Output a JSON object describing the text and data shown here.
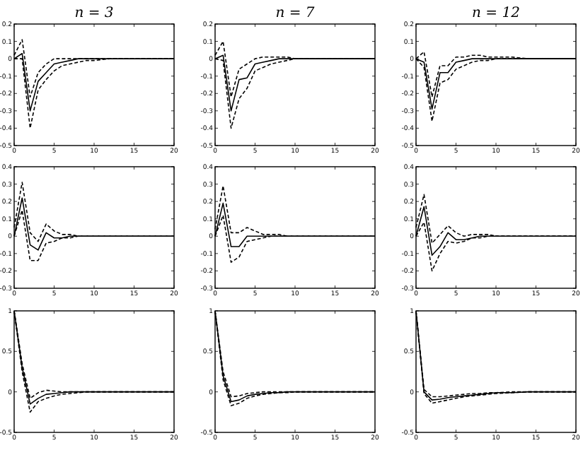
{
  "chart_data": [
    {
      "type": "line",
      "title": "n = 3",
      "x": [
        0,
        1,
        2,
        3,
        4,
        5,
        6,
        7,
        8,
        9,
        10,
        12,
        14,
        16,
        18,
        20
      ],
      "xlim": [
        0,
        20
      ],
      "xticks": [
        0,
        5,
        10,
        15,
        20
      ],
      "ylim": [
        -0.5,
        0.2
      ],
      "yticks": [
        -0.5,
        -0.4,
        -0.3,
        -0.2,
        -0.1,
        0,
        0.1,
        0.2
      ],
      "series": [
        {
          "color": "#000000",
          "line_style": "solid",
          "values": [
            0,
            0.03,
            -0.3,
            -0.13,
            -0.08,
            -0.03,
            -0.02,
            -0.01,
            0,
            0,
            0,
            0,
            0,
            0,
            0,
            0
          ]
        },
        {
          "color": "#000000",
          "line_style": "dashed",
          "values": [
            0,
            0,
            -0.4,
            -0.18,
            -0.12,
            -0.07,
            -0.04,
            -0.03,
            -0.02,
            -0.01,
            -0.01,
            0,
            0,
            0,
            0,
            0
          ]
        },
        {
          "color": "#000000",
          "line_style": "dashed",
          "values": [
            0.02,
            0.11,
            -0.22,
            -0.08,
            -0.03,
            0,
            0,
            0,
            0,
            0,
            0,
            0,
            0,
            0,
            0,
            0
          ]
        }
      ]
    },
    {
      "type": "line",
      "title": "n = 7",
      "x": [
        0,
        1,
        2,
        3,
        4,
        5,
        6,
        7,
        8,
        9,
        10,
        12,
        14,
        16,
        18,
        20
      ],
      "xlim": [
        0,
        20
      ],
      "xticks": [
        0,
        5,
        10,
        15,
        20
      ],
      "ylim": [
        -0.5,
        0.2
      ],
      "yticks": [
        -0.5,
        -0.4,
        -0.3,
        -0.2,
        -0.1,
        0,
        0.1,
        0.2
      ],
      "series": [
        {
          "color": "#000000",
          "line_style": "solid",
          "values": [
            0,
            0.02,
            -0.3,
            -0.12,
            -0.11,
            -0.03,
            -0.02,
            -0.01,
            0,
            0,
            0,
            0,
            0,
            0,
            0,
            0
          ]
        },
        {
          "color": "#000000",
          "line_style": "dashed",
          "values": [
            0,
            -0.01,
            -0.4,
            -0.23,
            -0.17,
            -0.07,
            -0.05,
            -0.03,
            -0.02,
            -0.01,
            0,
            0,
            0,
            0,
            0,
            0
          ]
        },
        {
          "color": "#000000",
          "line_style": "dashed",
          "values": [
            0.02,
            0.1,
            -0.22,
            -0.06,
            -0.03,
            0,
            0.01,
            0.01,
            0.01,
            0.01,
            0,
            0,
            0,
            0,
            0,
            0
          ]
        }
      ]
    },
    {
      "type": "line",
      "title": "n = 12",
      "x": [
        0,
        1,
        2,
        3,
        4,
        5,
        6,
        7,
        8,
        9,
        10,
        12,
        14,
        16,
        18,
        20
      ],
      "xlim": [
        0,
        20
      ],
      "xticks": [
        0,
        5,
        10,
        15,
        20
      ],
      "ylim": [
        -0.5,
        0.2
      ],
      "yticks": [
        -0.5,
        -0.4,
        -0.3,
        -0.2,
        -0.1,
        0,
        0.1,
        0.2
      ],
      "series": [
        {
          "color": "#000000",
          "line_style": "solid",
          "values": [
            0,
            -0.02,
            -0.29,
            -0.08,
            -0.08,
            -0.02,
            -0.01,
            0,
            0,
            0,
            0,
            0,
            0,
            0,
            0,
            0
          ]
        },
        {
          "color": "#000000",
          "line_style": "dashed",
          "values": [
            0,
            -0.05,
            -0.36,
            -0.14,
            -0.12,
            -0.06,
            -0.04,
            -0.02,
            -0.01,
            -0.01,
            0,
            0,
            0,
            0,
            0,
            0
          ]
        },
        {
          "color": "#000000",
          "line_style": "dashed",
          "values": [
            0,
            0.04,
            -0.22,
            -0.04,
            -0.04,
            0.01,
            0.01,
            0.02,
            0.02,
            0.01,
            0.01,
            0.01,
            0,
            0,
            0,
            0
          ]
        }
      ]
    },
    {
      "type": "line",
      "x": [
        0,
        1,
        2,
        3,
        4,
        5,
        6,
        7,
        8,
        9,
        10,
        12,
        14,
        16,
        18,
        20
      ],
      "xlim": [
        0,
        20
      ],
      "xticks": [
        0,
        5,
        10,
        15,
        20
      ],
      "ylim": [
        -0.3,
        0.4
      ],
      "yticks": [
        -0.3,
        -0.2,
        -0.1,
        0,
        0.1,
        0.2,
        0.3,
        0.4
      ],
      "series": [
        {
          "color": "#000000",
          "line_style": "solid",
          "values": [
            0,
            0.22,
            -0.05,
            -0.08,
            0.02,
            -0.01,
            -0.01,
            0,
            0,
            0,
            0,
            0,
            0,
            0,
            0,
            0
          ]
        },
        {
          "color": "#000000",
          "line_style": "dashed",
          "values": [
            0,
            0.15,
            -0.14,
            -0.14,
            -0.04,
            -0.03,
            -0.01,
            -0.01,
            0,
            0,
            0,
            0,
            0,
            0,
            0,
            0
          ]
        },
        {
          "color": "#000000",
          "line_style": "dashed",
          "values": [
            0.05,
            0.31,
            0.02,
            -0.03,
            0.07,
            0.03,
            0.01,
            0.01,
            0,
            0,
            0,
            0,
            0,
            0,
            0,
            0
          ]
        }
      ]
    },
    {
      "type": "line",
      "x": [
        0,
        1,
        2,
        3,
        4,
        5,
        6,
        7,
        8,
        9,
        10,
        12,
        14,
        16,
        18,
        20
      ],
      "xlim": [
        0,
        20
      ],
      "xticks": [
        0,
        5,
        10,
        15,
        20
      ],
      "ylim": [
        -0.3,
        0.4
      ],
      "yticks": [
        -0.3,
        -0.2,
        -0.1,
        0,
        0.1,
        0.2,
        0.3,
        0.4
      ],
      "series": [
        {
          "color": "#000000",
          "line_style": "solid",
          "values": [
            0,
            0.19,
            -0.06,
            -0.06,
            0,
            0,
            0,
            0,
            0,
            0,
            0,
            0,
            0,
            0,
            0,
            0
          ]
        },
        {
          "color": "#000000",
          "line_style": "dashed",
          "values": [
            0,
            0.12,
            -0.15,
            -0.12,
            -0.03,
            -0.02,
            -0.01,
            0,
            0,
            0,
            0,
            0,
            0,
            0,
            0,
            0
          ]
        },
        {
          "color": "#000000",
          "line_style": "dashed",
          "values": [
            0.04,
            0.29,
            0.02,
            0.02,
            0.05,
            0.03,
            0.01,
            0.01,
            0.01,
            0,
            0,
            0,
            0,
            0,
            0,
            0
          ]
        }
      ]
    },
    {
      "type": "line",
      "x": [
        0,
        1,
        2,
        3,
        4,
        5,
        6,
        7,
        8,
        9,
        10,
        12,
        14,
        16,
        18,
        20
      ],
      "xlim": [
        0,
        20
      ],
      "xticks": [
        0,
        5,
        10,
        15,
        20
      ],
      "ylim": [
        -0.3,
        0.4
      ],
      "yticks": [
        -0.3,
        -0.2,
        -0.1,
        0,
        0.1,
        0.2,
        0.3,
        0.4
      ],
      "series": [
        {
          "color": "#000000",
          "line_style": "solid",
          "values": [
            0,
            0.17,
            -0.11,
            -0.06,
            0.02,
            -0.02,
            -0.02,
            -0.01,
            0,
            0,
            0,
            0,
            0,
            0,
            0,
            0
          ]
        },
        {
          "color": "#000000",
          "line_style": "dashed",
          "values": [
            0,
            0.08,
            -0.2,
            -0.1,
            -0.03,
            -0.04,
            -0.03,
            -0.01,
            -0.01,
            0,
            0,
            0,
            0,
            0,
            0,
            0
          ]
        },
        {
          "color": "#000000",
          "line_style": "dashed",
          "values": [
            0.05,
            0.24,
            -0.04,
            0.01,
            0.06,
            0.02,
            0,
            0.01,
            0.01,
            0.01,
            0,
            0,
            0,
            0,
            0,
            0
          ]
        }
      ]
    },
    {
      "type": "line",
      "x": [
        0,
        1,
        2,
        3,
        4,
        5,
        6,
        7,
        8,
        9,
        10,
        12,
        14,
        16,
        18,
        20
      ],
      "xlim": [
        0,
        20
      ],
      "xticks": [
        0,
        5,
        10,
        15,
        20
      ],
      "ylim": [
        -0.5,
        1
      ],
      "yticks": [
        -0.5,
        0,
        0.5,
        1
      ],
      "series": [
        {
          "color": "#000000",
          "line_style": "solid",
          "values": [
            1,
            0.3,
            -0.15,
            -0.08,
            -0.03,
            -0.02,
            -0.01,
            0,
            0,
            0,
            0,
            0,
            0,
            0,
            0,
            0
          ]
        },
        {
          "color": "#000000",
          "line_style": "dashed",
          "values": [
            1,
            0.25,
            -0.25,
            -0.12,
            -0.08,
            -0.05,
            -0.03,
            -0.02,
            -0.01,
            0,
            0,
            0,
            0,
            0,
            0,
            0
          ]
        },
        {
          "color": "#000000",
          "line_style": "dashed",
          "values": [
            1,
            0.35,
            -0.08,
            -0.01,
            0.02,
            0.01,
            0,
            0,
            0,
            0,
            0,
            0,
            0,
            0,
            0,
            0
          ]
        }
      ]
    },
    {
      "type": "line",
      "x": [
        0,
        1,
        2,
        3,
        4,
        5,
        6,
        7,
        8,
        9,
        10,
        12,
        14,
        16,
        18,
        20
      ],
      "xlim": [
        0,
        20
      ],
      "xticks": [
        0,
        5,
        10,
        15,
        20
      ],
      "ylim": [
        -0.5,
        1
      ],
      "yticks": [
        -0.5,
        0,
        0.5,
        1
      ],
      "series": [
        {
          "color": "#000000",
          "line_style": "solid",
          "values": [
            1,
            0.2,
            -0.12,
            -0.1,
            -0.05,
            -0.03,
            -0.02,
            -0.01,
            -0.01,
            0,
            0,
            0,
            0,
            0,
            0,
            0
          ]
        },
        {
          "color": "#000000",
          "line_style": "dashed",
          "values": [
            1,
            0.15,
            -0.17,
            -0.14,
            -0.08,
            -0.05,
            -0.03,
            -0.02,
            -0.01,
            -0.01,
            0,
            0,
            0,
            0,
            0,
            0
          ]
        },
        {
          "color": "#000000",
          "line_style": "dashed",
          "values": [
            1,
            0.25,
            -0.06,
            -0.05,
            -0.02,
            -0.01,
            0,
            0,
            0,
            0,
            0,
            0,
            0,
            0,
            0,
            0
          ]
        }
      ]
    },
    {
      "type": "line",
      "x": [
        0,
        1,
        2,
        3,
        4,
        5,
        6,
        7,
        8,
        9,
        10,
        12,
        14,
        16,
        18,
        20
      ],
      "xlim": [
        0,
        20
      ],
      "xticks": [
        0,
        5,
        10,
        15,
        20
      ],
      "ylim": [
        -0.5,
        1
      ],
      "yticks": [
        -0.5,
        0,
        0.5,
        1
      ],
      "series": [
        {
          "color": "#000000",
          "line_style": "solid",
          "values": [
            1,
            0,
            -0.1,
            -0.09,
            -0.07,
            -0.06,
            -0.05,
            -0.04,
            -0.03,
            -0.02,
            -0.01,
            -0.01,
            0,
            0,
            0,
            0
          ]
        },
        {
          "color": "#000000",
          "line_style": "dashed",
          "values": [
            1,
            -0.02,
            -0.14,
            -0.12,
            -0.1,
            -0.08,
            -0.06,
            -0.05,
            -0.04,
            -0.03,
            -0.02,
            -0.01,
            0,
            0,
            0,
            0
          ]
        },
        {
          "color": "#000000",
          "line_style": "dashed",
          "values": [
            1,
            0.03,
            -0.06,
            -0.06,
            -0.05,
            -0.04,
            -0.03,
            -0.02,
            -0.02,
            -0.01,
            -0.01,
            0,
            0,
            0,
            0,
            0
          ]
        }
      ]
    }
  ]
}
